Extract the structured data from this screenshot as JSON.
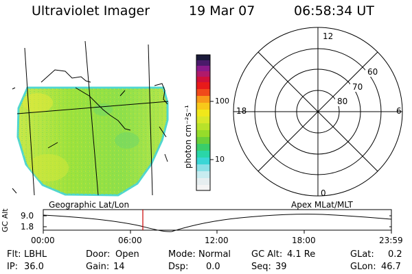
{
  "header": {
    "title": "Ultraviolet Imager",
    "date": "19 Mar 07",
    "time": "06:58:34 UT"
  },
  "colorbar": {
    "unit_label": "photon cm⁻²s⁻¹",
    "ticks": [
      "100",
      "10"
    ]
  },
  "polar_plot": {
    "mlt_labels": {
      "top": "12",
      "bottom": "0",
      "left": "18",
      "right": "6"
    },
    "lat_labels": [
      "60",
      "70",
      "80"
    ]
  },
  "panel_labels": {
    "left": "Geographic Lat/Lon",
    "right": "Apex MLat/MLT"
  },
  "altitude_plot": {
    "ylabel": "GC Alt",
    "ymax_label": "9.0",
    "ymin_label": "1.8",
    "x_ticks": [
      "00:00",
      "06:00",
      "12:00",
      "18:00",
      "23:59"
    ],
    "marker_time": "06:58"
  },
  "status": {
    "row1": [
      {
        "label": "Flt:",
        "value": "LBHL"
      },
      {
        "label": "Door:",
        "value": "Open"
      },
      {
        "label": "Mode:",
        "value": "Normal"
      },
      {
        "label": "GC Alt:",
        "value": "4.1 Re"
      },
      {
        "label": "GLat:",
        "value": "0.2"
      }
    ],
    "row2": [
      {
        "label": "IP:",
        "value": "36.0"
      },
      {
        "label": "Gain:",
        "value": "14"
      },
      {
        "label": "Dsp:",
        "value": "0.0"
      },
      {
        "label": "Seq:",
        "value": "39"
      },
      {
        "label": "GLon:",
        "value": "46.7"
      }
    ]
  },
  "colors": {
    "image_fill": "#a6e63a",
    "image_edge": "#4fd6d0",
    "marker": "#cc0000"
  }
}
